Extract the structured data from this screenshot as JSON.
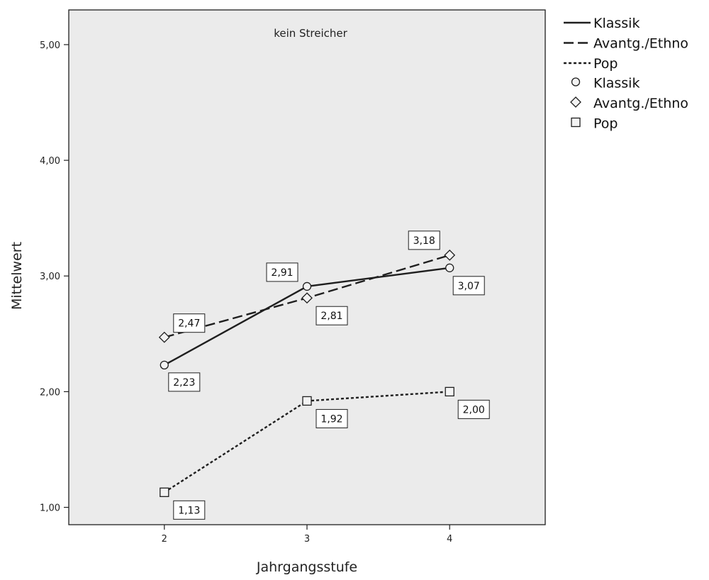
{
  "chart_data": {
    "type": "line",
    "title": "kein Streicher",
    "xlabel": "Jahrgangsstufe",
    "ylabel": "Mittelwert",
    "x": [
      2,
      3,
      4
    ],
    "xlim": [
      1.33,
      4.67
    ],
    "ylim": [
      0.85,
      5.3
    ],
    "yticks": [
      "1,00",
      "2,00",
      "3,00",
      "4,00",
      "5,00"
    ],
    "ytick_values": [
      1,
      2,
      3,
      4,
      5
    ],
    "xticks": [
      "2",
      "3",
      "4"
    ],
    "grid": false,
    "legend_position": "right",
    "series": [
      {
        "name": "Klassik",
        "values": [
          2.23,
          2.91,
          3.07
        ],
        "labels": [
          "2,23",
          "2,91",
          "3,07"
        ],
        "line": "solid",
        "marker": "circle"
      },
      {
        "name": "Avantg./Ethno",
        "values": [
          2.47,
          2.81,
          3.18
        ],
        "labels": [
          "2,47",
          "2,81",
          "3,18"
        ],
        "line": "dashed",
        "marker": "diamond"
      },
      {
        "name": "Pop",
        "values": [
          1.13,
          1.92,
          2.0
        ],
        "labels": [
          "1,13",
          "1,92",
          "2,00"
        ],
        "line": "dotted",
        "marker": "square"
      }
    ],
    "legend": {
      "lines": [
        "Klassik",
        "Avantg./Ethno",
        "Pop"
      ],
      "markers": [
        "Klassik",
        "Avantg./Ethno",
        "Pop"
      ]
    },
    "colors": {
      "plot_background": "#ebebeb",
      "ink": "#1f1f1f"
    }
  }
}
